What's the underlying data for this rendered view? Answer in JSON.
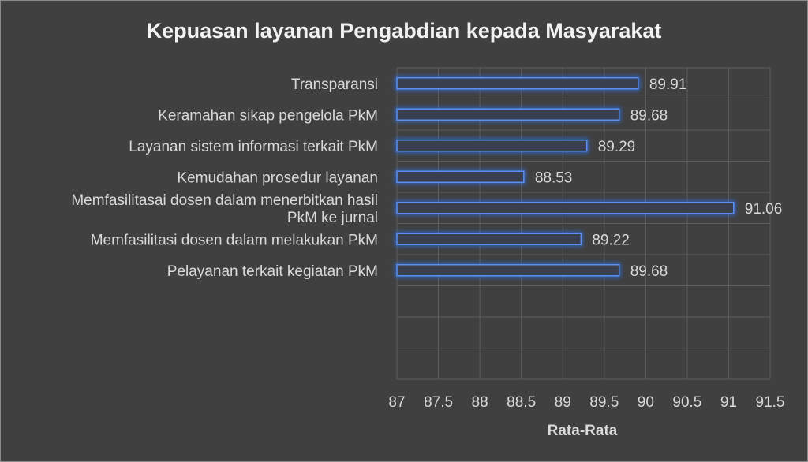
{
  "chart_data": {
    "type": "bar",
    "orientation": "horizontal",
    "title": "Kepuasan layanan Pengabdian kepada Masyarakat",
    "xlabel": "Rata-Rata",
    "ylabel": "",
    "categories": [
      "Transparansi",
      "Keramahan sikap pengelola PkM",
      "Layanan sistem informasi terkait PkM",
      "Kemudahan prosedur layanan",
      "Memfasilitasai dosen dalam menerbitkan hasil PkM ke  jurnal",
      "Memfasilitasi dosen dalam melakukan PkM",
      "Pelayanan terkait kegiatan PkM"
    ],
    "category_lines": [
      [
        "Transparansi"
      ],
      [
        "Keramahan sikap pengelola PkM"
      ],
      [
        "Layanan sistem informasi terkait PkM"
      ],
      [
        "Kemudahan prosedur layanan"
      ],
      [
        "Memfasilitasai dosen dalam menerbitkan hasil",
        "PkM ke  jurnal"
      ],
      [
        "Memfasilitasi dosen dalam melakukan PkM"
      ],
      [
        "Pelayanan terkait kegiatan PkM"
      ]
    ],
    "values": [
      89.91,
      89.68,
      89.29,
      88.53,
      91.06,
      89.22,
      89.68
    ],
    "value_labels": [
      "89.91",
      "89.68",
      "89.29",
      "88.53",
      "91.06",
      "89.22",
      "89.68"
    ],
    "xlim": [
      87,
      91.5
    ],
    "ticks": [
      "87",
      "87.5",
      "88",
      "88.5",
      "89",
      "89.5",
      "90",
      "90.5",
      "91",
      "91.5"
    ],
    "empty_rows": 3,
    "grid": true,
    "legend": "none",
    "colors": {
      "background": "#404040",
      "border": "#8c8c8c",
      "bar_fill": "#3a3f50",
      "bar_edge": "#5b8ff0",
      "bar_glow": "#2f6fe6",
      "grid": "#5e5e5e",
      "text": "#d9d9d9",
      "title": "#f2f2f2"
    }
  }
}
